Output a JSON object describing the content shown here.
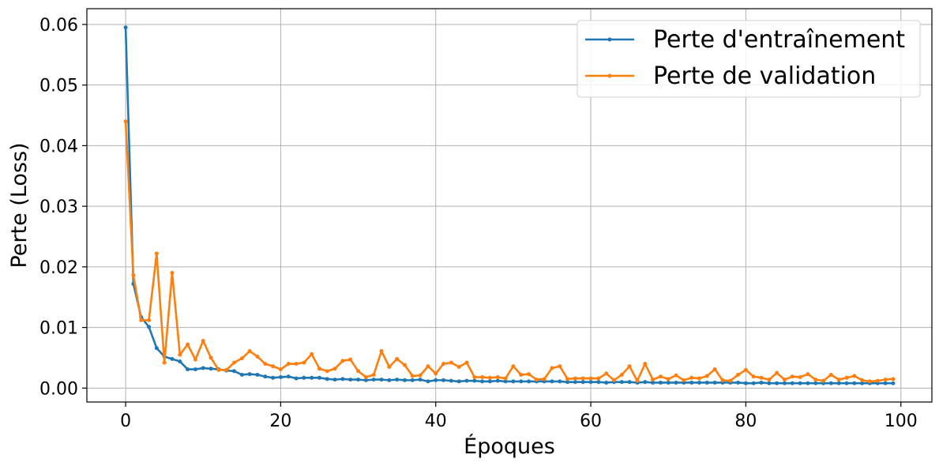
{
  "chart_data": {
    "type": "line",
    "xlabel": "Époques",
    "ylabel": "Perte (Loss)",
    "xlim": [
      -5,
      104
    ],
    "ylim": [
      -0.0023,
      0.0626
    ],
    "xticks": [
      0,
      20,
      40,
      60,
      80,
      100
    ],
    "xtick_labels": [
      "0",
      "20",
      "40",
      "60",
      "80",
      "100"
    ],
    "yticks": [
      0,
      0.01,
      0.02,
      0.03,
      0.04,
      0.05,
      0.06
    ],
    "ytick_labels": [
      "0.00",
      "0.01",
      "0.02",
      "0.03",
      "0.04",
      "0.05",
      "0.06"
    ],
    "grid": true,
    "legend_position": "top-right",
    "colors": {
      "train": "#1f77b4",
      "val": "#ff7f0e",
      "grid": "#b0b0b0"
    },
    "series": [
      {
        "name": "Perte d'entraînement",
        "color": "#1f77b4",
        "values": [
          0.0595,
          0.0172,
          0.0117,
          0.0101,
          0.0066,
          0.0052,
          0.0048,
          0.0044,
          0.0031,
          0.0031,
          0.0033,
          0.0032,
          0.0031,
          0.0029,
          0.0028,
          0.0022,
          0.0023,
          0.0022,
          0.0019,
          0.0017,
          0.0018,
          0.0019,
          0.0016,
          0.0017,
          0.0017,
          0.0017,
          0.0015,
          0.0014,
          0.0015,
          0.0014,
          0.0014,
          0.0013,
          0.0014,
          0.0014,
          0.0013,
          0.0014,
          0.0013,
          0.0013,
          0.0014,
          0.0011,
          0.0013,
          0.0013,
          0.0012,
          0.0011,
          0.0012,
          0.0012,
          0.0011,
          0.0011,
          0.0012,
          0.0011,
          0.0011,
          0.0011,
          0.0011,
          0.0011,
          0.0011,
          0.0011,
          0.0011,
          0.001,
          0.001,
          0.001,
          0.001,
          0.001,
          0.0009,
          0.001,
          0.001,
          0.001,
          0.0009,
          0.001,
          0.0009,
          0.0009,
          0.0009,
          0.0009,
          0.0009,
          0.0009,
          0.0009,
          0.0009,
          0.0009,
          0.0009,
          0.0009,
          0.0009,
          0.0008,
          0.0008,
          0.0009,
          0.0008,
          0.0008,
          0.0008,
          0.0008,
          0.0008,
          0.0008,
          0.0008,
          0.0008,
          0.0008,
          0.0008,
          0.0008,
          0.0008,
          0.0008,
          0.0008,
          0.0008,
          0.0008,
          0.0008
        ]
      },
      {
        "name": "Perte de validation",
        "color": "#ff7f0e",
        "values": [
          0.044,
          0.0186,
          0.0112,
          0.0112,
          0.0222,
          0.0042,
          0.019,
          0.0055,
          0.0072,
          0.0047,
          0.0078,
          0.005,
          0.003,
          0.003,
          0.0042,
          0.0049,
          0.0061,
          0.0052,
          0.004,
          0.0036,
          0.0031,
          0.004,
          0.004,
          0.0042,
          0.0056,
          0.0032,
          0.0028,
          0.0032,
          0.0045,
          0.0047,
          0.0028,
          0.0018,
          0.0022,
          0.0061,
          0.0035,
          0.0048,
          0.0038,
          0.002,
          0.0021,
          0.0036,
          0.0024,
          0.004,
          0.0042,
          0.0035,
          0.0042,
          0.0018,
          0.0018,
          0.0017,
          0.0018,
          0.0016,
          0.0036,
          0.0022,
          0.0023,
          0.0014,
          0.0015,
          0.0033,
          0.0036,
          0.0015,
          0.0016,
          0.0016,
          0.0016,
          0.0016,
          0.0024,
          0.0013,
          0.0022,
          0.0036,
          0.0012,
          0.004,
          0.0014,
          0.0019,
          0.0015,
          0.0021,
          0.0013,
          0.0017,
          0.0016,
          0.002,
          0.0031,
          0.0013,
          0.0012,
          0.0022,
          0.003,
          0.0019,
          0.0017,
          0.0014,
          0.0025,
          0.0014,
          0.0019,
          0.0018,
          0.0023,
          0.0014,
          0.0012,
          0.0022,
          0.0014,
          0.0017,
          0.002,
          0.0013,
          0.0011,
          0.0012,
          0.0014,
          0.0015
        ]
      }
    ]
  }
}
